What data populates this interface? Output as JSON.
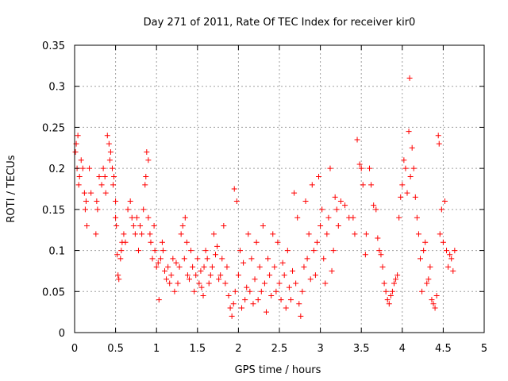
{
  "chart_data": {
    "type": "scatter",
    "title": "Day 271 of 2011, Rate Of TEC Index for receiver kir0",
    "xlabel": "GPS time / hours",
    "ylabel": "ROTI / TECUs",
    "xlim": [
      0,
      5
    ],
    "ylim": [
      0,
      0.35
    ],
    "x_ticks": [
      "0",
      "0.5",
      "1",
      "1.5",
      "2",
      "2.5",
      "3",
      "3.5",
      "4",
      "4.5",
      "5"
    ],
    "y_ticks": [
      "0",
      "0.05",
      "0.1",
      "0.15",
      "0.2",
      "0.25",
      "0.3",
      "0.35"
    ],
    "grid": true,
    "marker": "plus",
    "color": "#ff0000",
    "series": [
      {
        "points": [
          [
            0.01,
            0.22
          ],
          [
            0.02,
            0.23
          ],
          [
            0.03,
            0.2
          ],
          [
            0.04,
            0.24
          ],
          [
            0.05,
            0.18
          ],
          [
            0.06,
            0.19
          ],
          [
            0.08,
            0.21
          ],
          [
            0.1,
            0.2
          ],
          [
            0.12,
            0.17
          ],
          [
            0.13,
            0.15
          ],
          [
            0.14,
            0.16
          ],
          [
            0.15,
            0.13
          ],
          [
            0.18,
            0.2
          ],
          [
            0.2,
            0.17
          ],
          [
            0.26,
            0.12
          ],
          [
            0.27,
            0.16
          ],
          [
            0.28,
            0.15
          ],
          [
            0.3,
            0.19
          ],
          [
            0.33,
            0.18
          ],
          [
            0.35,
            0.2
          ],
          [
            0.37,
            0.19
          ],
          [
            0.38,
            0.17
          ],
          [
            0.4,
            0.24
          ],
          [
            0.42,
            0.23
          ],
          [
            0.43,
            0.21
          ],
          [
            0.44,
            0.22
          ],
          [
            0.46,
            0.2
          ],
          [
            0.47,
            0.18
          ],
          [
            0.48,
            0.19
          ],
          [
            0.5,
            0.14
          ],
          [
            0.5,
            0.16
          ],
          [
            0.51,
            0.13
          ],
          [
            0.52,
            0.095
          ],
          [
            0.53,
            0.07
          ],
          [
            0.54,
            0.065
          ],
          [
            0.56,
            0.09
          ],
          [
            0.57,
            0.1
          ],
          [
            0.58,
            0.11
          ],
          [
            0.6,
            0.12
          ],
          [
            0.62,
            0.11
          ],
          [
            0.65,
            0.15
          ],
          [
            0.68,
            0.16
          ],
          [
            0.7,
            0.14
          ],
          [
            0.72,
            0.13
          ],
          [
            0.74,
            0.12
          ],
          [
            0.76,
            0.14
          ],
          [
            0.78,
            0.1
          ],
          [
            0.8,
            0.13
          ],
          [
            0.82,
            0.12
          ],
          [
            0.84,
            0.15
          ],
          [
            0.86,
            0.18
          ],
          [
            0.87,
            0.19
          ],
          [
            0.88,
            0.22
          ],
          [
            0.9,
            0.21
          ],
          [
            0.9,
            0.14
          ],
          [
            0.92,
            0.12
          ],
          [
            0.93,
            0.11
          ],
          [
            0.95,
            0.09
          ],
          [
            0.97,
            0.13
          ],
          [
            0.98,
            0.1
          ],
          [
            1.0,
            0.08
          ],
          [
            1.02,
            0.085
          ],
          [
            1.03,
            0.04
          ],
          [
            1.05,
            0.09
          ],
          [
            1.07,
            0.11
          ],
          [
            1.08,
            0.1
          ],
          [
            1.1,
            0.075
          ],
          [
            1.12,
            0.065
          ],
          [
            1.14,
            0.08
          ],
          [
            1.16,
            0.06
          ],
          [
            1.18,
            0.07
          ],
          [
            1.2,
            0.09
          ],
          [
            1.22,
            0.05
          ],
          [
            1.24,
            0.085
          ],
          [
            1.26,
            0.06
          ],
          [
            1.28,
            0.08
          ],
          [
            1.3,
            0.12
          ],
          [
            1.32,
            0.13
          ],
          [
            1.34,
            0.09
          ],
          [
            1.35,
            0.14
          ],
          [
            1.37,
            0.11
          ],
          [
            1.38,
            0.07
          ],
          [
            1.4,
            0.065
          ],
          [
            1.42,
            0.1
          ],
          [
            1.44,
            0.08
          ],
          [
            1.46,
            0.05
          ],
          [
            1.48,
            0.07
          ],
          [
            1.5,
            0.09
          ],
          [
            1.52,
            0.06
          ],
          [
            1.54,
            0.075
          ],
          [
            1.55,
            0.055
          ],
          [
            1.57,
            0.045
          ],
          [
            1.58,
            0.08
          ],
          [
            1.6,
            0.1
          ],
          [
            1.62,
            0.09
          ],
          [
            1.64,
            0.06
          ],
          [
            1.66,
            0.07
          ],
          [
            1.68,
            0.08
          ],
          [
            1.7,
            0.12
          ],
          [
            1.72,
            0.095
          ],
          [
            1.74,
            0.105
          ],
          [
            1.76,
            0.065
          ],
          [
            1.78,
            0.07
          ],
          [
            1.8,
            0.09
          ],
          [
            1.82,
            0.13
          ],
          [
            1.84,
            0.06
          ],
          [
            1.86,
            0.08
          ],
          [
            1.88,
            0.045
          ],
          [
            1.9,
            0.03
          ],
          [
            1.92,
            0.02
          ],
          [
            1.94,
            0.035
          ],
          [
            1.95,
            0.175
          ],
          [
            1.96,
            0.05
          ],
          [
            1.98,
            0.16
          ],
          [
            2.0,
            0.07
          ],
          [
            2.02,
            0.1
          ],
          [
            2.04,
            0.03
          ],
          [
            2.06,
            0.085
          ],
          [
            2.08,
            0.04
          ],
          [
            2.1,
            0.055
          ],
          [
            2.12,
            0.12
          ],
          [
            2.14,
            0.05
          ],
          [
            2.16,
            0.09
          ],
          [
            2.18,
            0.035
          ],
          [
            2.2,
            0.065
          ],
          [
            2.22,
            0.11
          ],
          [
            2.24,
            0.04
          ],
          [
            2.26,
            0.08
          ],
          [
            2.28,
            0.05
          ],
          [
            2.3,
            0.13
          ],
          [
            2.32,
            0.06
          ],
          [
            2.34,
            0.025
          ],
          [
            2.36,
            0.09
          ],
          [
            2.38,
            0.07
          ],
          [
            2.4,
            0.045
          ],
          [
            2.42,
            0.12
          ],
          [
            2.44,
            0.08
          ],
          [
            2.46,
            0.05
          ],
          [
            2.48,
            0.11
          ],
          [
            2.5,
            0.06
          ],
          [
            2.52,
            0.04
          ],
          [
            2.54,
            0.085
          ],
          [
            2.56,
            0.07
          ],
          [
            2.58,
            0.03
          ],
          [
            2.6,
            0.1
          ],
          [
            2.62,
            0.055
          ],
          [
            2.64,
            0.04
          ],
          [
            2.66,
            0.075
          ],
          [
            2.68,
            0.17
          ],
          [
            2.7,
            0.06
          ],
          [
            2.72,
            0.14
          ],
          [
            2.74,
            0.035
          ],
          [
            2.76,
            0.02
          ],
          [
            2.78,
            0.05
          ],
          [
            2.8,
            0.08
          ],
          [
            2.82,
            0.16
          ],
          [
            2.84,
            0.09
          ],
          [
            2.86,
            0.12
          ],
          [
            2.88,
            0.065
          ],
          [
            2.9,
            0.18
          ],
          [
            2.92,
            0.1
          ],
          [
            2.94,
            0.07
          ],
          [
            2.96,
            0.11
          ],
          [
            2.98,
            0.19
          ],
          [
            3.0,
            0.13
          ],
          [
            3.02,
            0.15
          ],
          [
            3.04,
            0.09
          ],
          [
            3.06,
            0.06
          ],
          [
            3.08,
            0.12
          ],
          [
            3.1,
            0.14
          ],
          [
            3.12,
            0.2
          ],
          [
            3.14,
            0.075
          ],
          [
            3.16,
            0.1
          ],
          [
            3.18,
            0.165
          ],
          [
            3.2,
            0.15
          ],
          [
            3.22,
            0.13
          ],
          [
            3.25,
            0.16
          ],
          [
            3.3,
            0.155
          ],
          [
            3.35,
            0.14
          ],
          [
            3.4,
            0.14
          ],
          [
            3.42,
            0.12
          ],
          [
            3.45,
            0.235
          ],
          [
            3.48,
            0.205
          ],
          [
            3.5,
            0.2
          ],
          [
            3.52,
            0.18
          ],
          [
            3.55,
            0.095
          ],
          [
            3.56,
            0.12
          ],
          [
            3.6,
            0.2
          ],
          [
            3.62,
            0.18
          ],
          [
            3.65,
            0.155
          ],
          [
            3.68,
            0.15
          ],
          [
            3.7,
            0.115
          ],
          [
            3.72,
            0.1
          ],
          [
            3.74,
            0.095
          ],
          [
            3.76,
            0.08
          ],
          [
            3.78,
            0.06
          ],
          [
            3.8,
            0.05
          ],
          [
            3.82,
            0.04
          ],
          [
            3.84,
            0.035
          ],
          [
            3.86,
            0.045
          ],
          [
            3.88,
            0.05
          ],
          [
            3.9,
            0.06
          ],
          [
            3.92,
            0.065
          ],
          [
            3.94,
            0.07
          ],
          [
            3.96,
            0.14
          ],
          [
            3.98,
            0.165
          ],
          [
            4.0,
            0.18
          ],
          [
            4.02,
            0.21
          ],
          [
            4.04,
            0.2
          ],
          [
            4.06,
            0.17
          ],
          [
            4.08,
            0.245
          ],
          [
            4.09,
            0.31
          ],
          [
            4.1,
            0.19
          ],
          [
            4.12,
            0.225
          ],
          [
            4.14,
            0.2
          ],
          [
            4.16,
            0.165
          ],
          [
            4.18,
            0.14
          ],
          [
            4.2,
            0.12
          ],
          [
            4.22,
            0.09
          ],
          [
            4.24,
            0.05
          ],
          [
            4.26,
            0.1
          ],
          [
            4.28,
            0.11
          ],
          [
            4.3,
            0.06
          ],
          [
            4.32,
            0.065
          ],
          [
            4.34,
            0.08
          ],
          [
            4.36,
            0.04
          ],
          [
            4.38,
            0.035
          ],
          [
            4.4,
            0.03
          ],
          [
            4.42,
            0.045
          ],
          [
            4.44,
            0.24
          ],
          [
            4.45,
            0.23
          ],
          [
            4.46,
            0.12
          ],
          [
            4.48,
            0.15
          ],
          [
            4.5,
            0.11
          ],
          [
            4.52,
            0.16
          ],
          [
            4.54,
            0.1
          ],
          [
            4.56,
            0.08
          ],
          [
            4.58,
            0.095
          ],
          [
            4.6,
            0.09
          ],
          [
            4.62,
            0.075
          ],
          [
            4.64,
            0.1
          ]
        ]
      }
    ]
  }
}
